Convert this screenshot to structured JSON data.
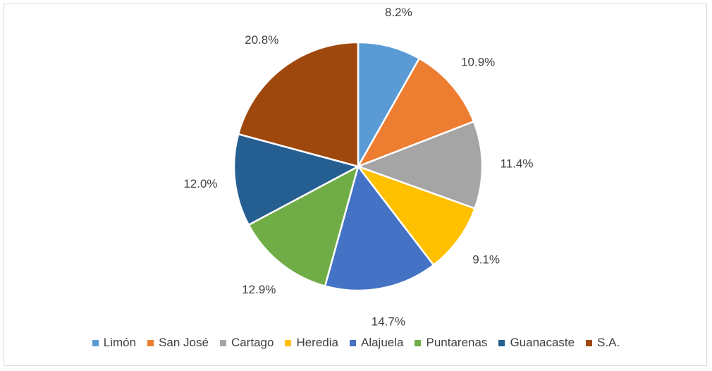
{
  "chart_data": {
    "type": "pie",
    "title": "",
    "slices": [
      {
        "label": "Limón",
        "value": 8.2,
        "display": "8.2%",
        "color": "#5B9BD5"
      },
      {
        "label": "San José",
        "value": 10.9,
        "display": "10.9%",
        "color": "#ED7D31"
      },
      {
        "label": "Cartago",
        "value": 11.4,
        "display": "11.4%",
        "color": "#A5A5A5"
      },
      {
        "label": "Heredia",
        "value": 9.1,
        "display": "9.1%",
        "color": "#FFC000"
      },
      {
        "label": "Alajuela",
        "value": 14.7,
        "display": "14.7%",
        "color": "#4472C4"
      },
      {
        "label": "Puntarenas",
        "value": 12.9,
        "display": "12.9%",
        "color": "#70AD47"
      },
      {
        "label": "Guanacaste",
        "value": 12.0,
        "display": "12.0%",
        "color": "#255E91"
      },
      {
        "label": "S.A.",
        "value": 20.8,
        "display": "20.8%",
        "color": "#9E480E"
      }
    ],
    "legend_position": "bottom"
  }
}
